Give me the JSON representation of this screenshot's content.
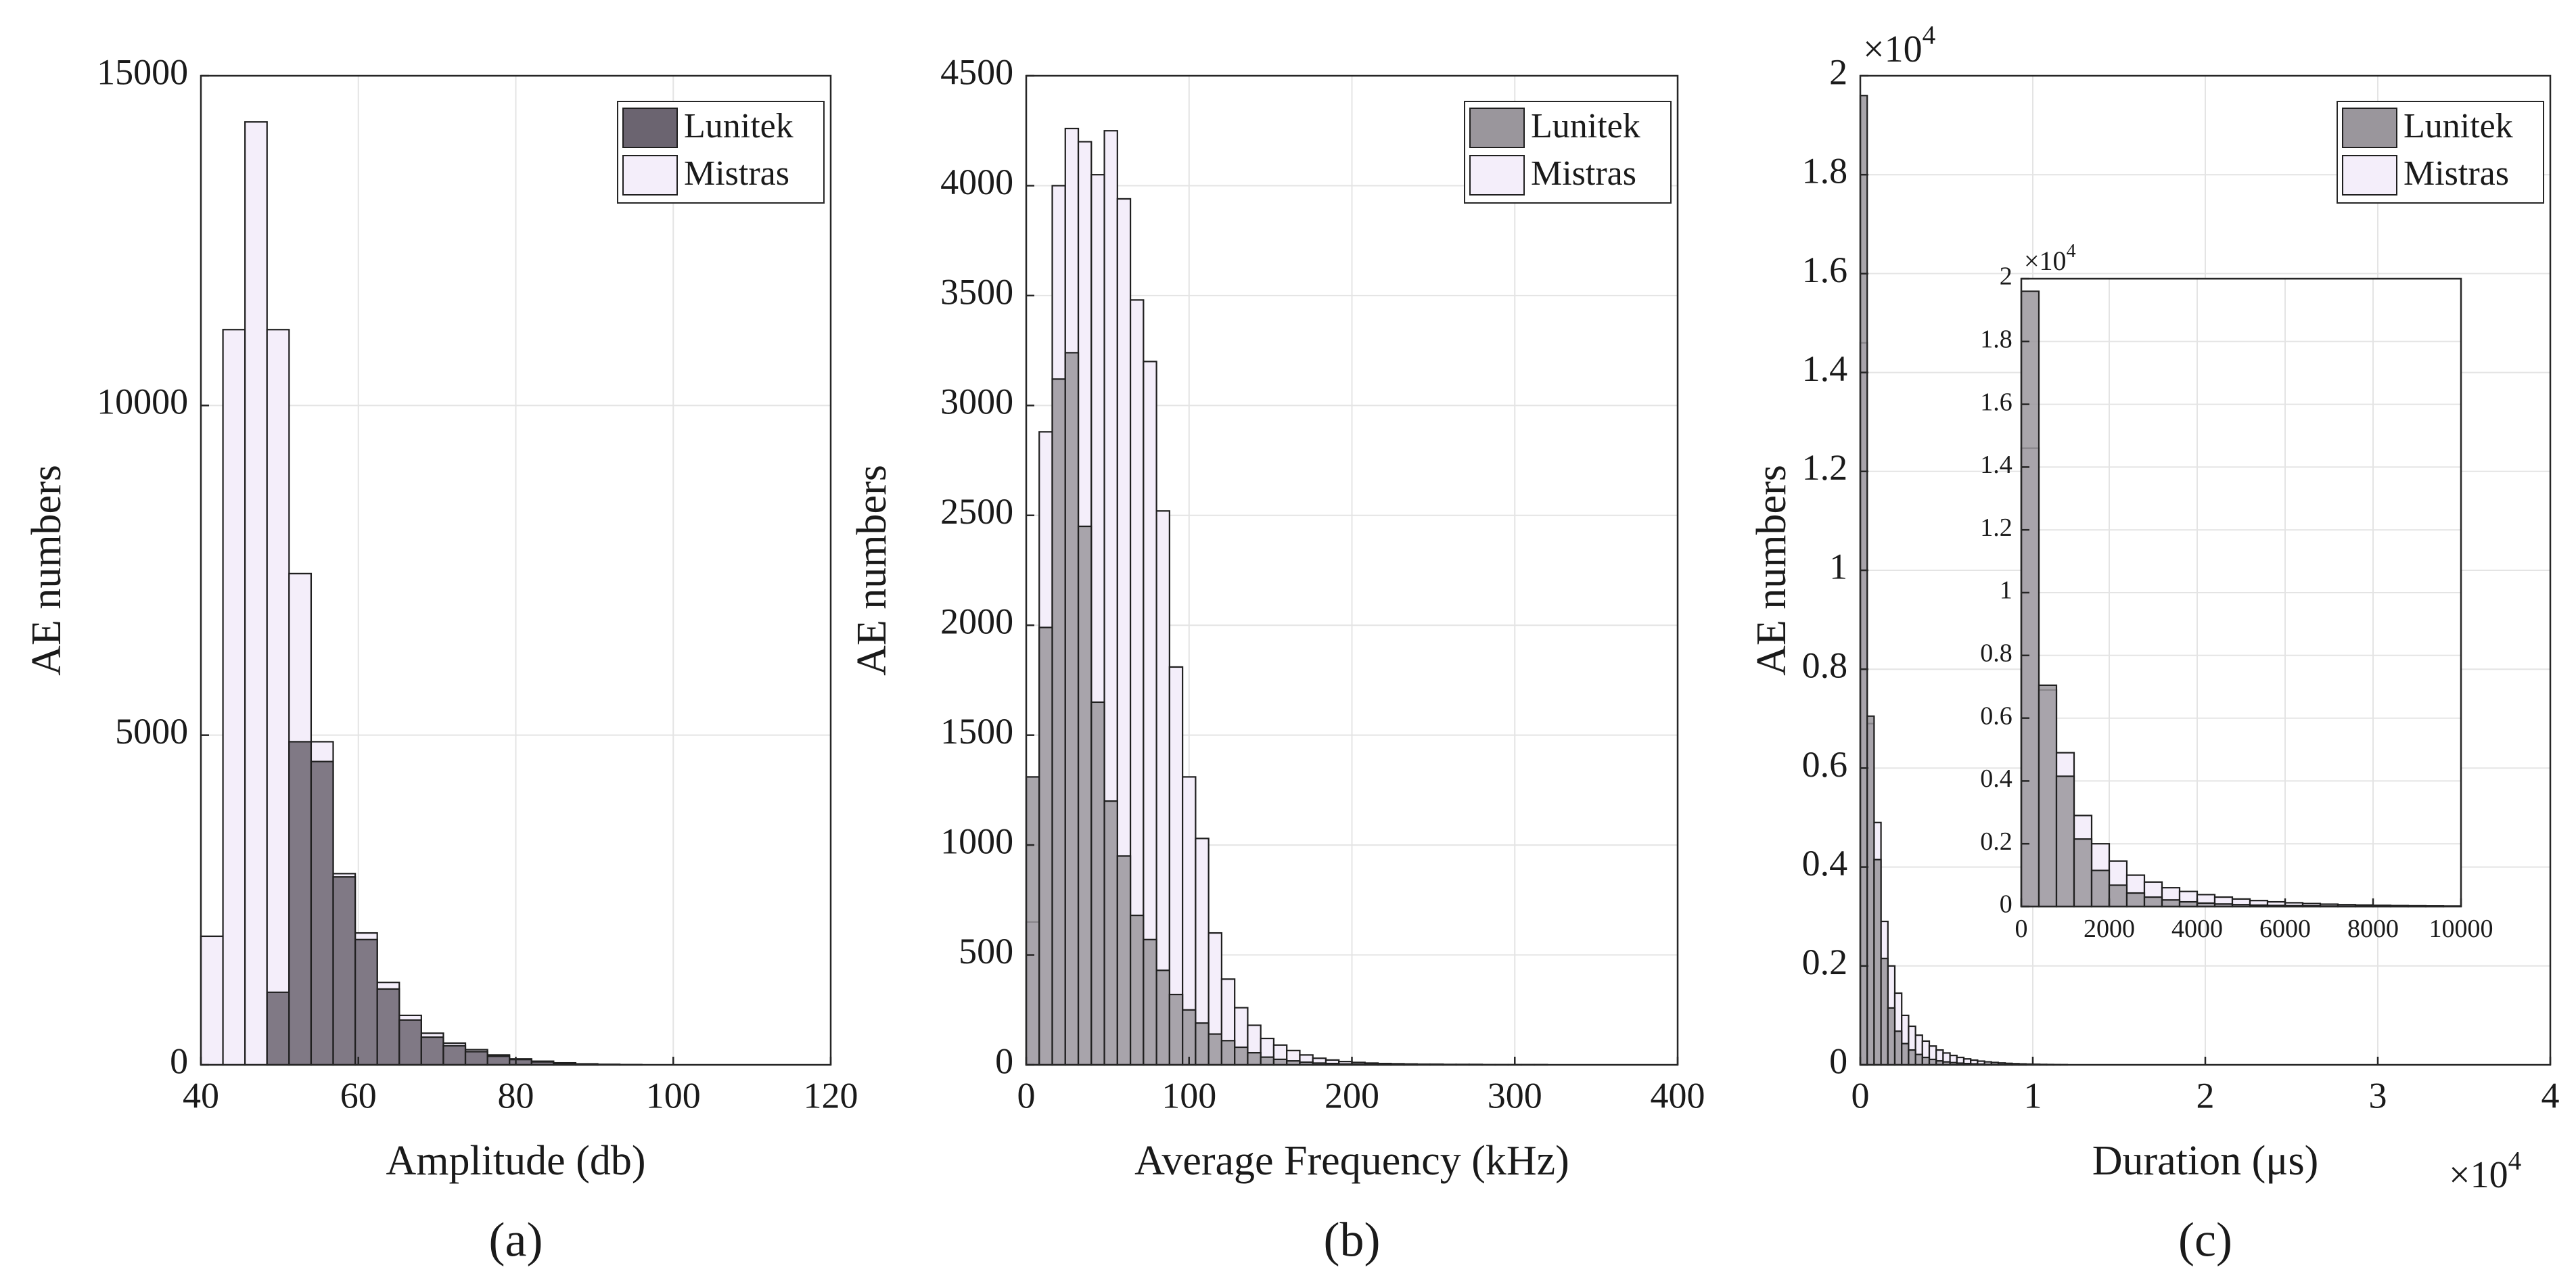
{
  "colors": {
    "lunitek_fill": "#6b6470",
    "lunitek_fill_light": "#9a969c",
    "mistras_fill": "#f4eefa",
    "bar_edge": "#1f1f1f",
    "grid": "#e4e4e4",
    "axis": "#262626"
  },
  "chart_data": [
    {
      "id": "a",
      "type": "bar",
      "panel_label": "(a)",
      "xlabel": "Amplitude (db)",
      "ylabel": "AE numbers",
      "xlim": [
        40,
        120
      ],
      "ylim": [
        0,
        15000
      ],
      "xticks": [
        40,
        60,
        80,
        100,
        120
      ],
      "yticks": [
        0,
        5000,
        10000,
        15000
      ],
      "grid": true,
      "legend": {
        "position": "top-right",
        "entries": [
          "Lunitek",
          "Mistras"
        ]
      },
      "series": [
        {
          "name": "Mistras",
          "bin_edges": [
            40,
            42.8,
            45.6,
            48.4,
            51.2,
            54,
            56.8,
            59.6,
            62.4,
            65.2,
            68,
            70.8,
            73.6,
            76.4,
            79.2,
            82,
            84.8,
            87.6,
            90.4,
            93.2,
            96
          ],
          "values": [
            1950,
            11150,
            14300,
            11150,
            7450,
            4900,
            2900,
            2000,
            1250,
            750,
            480,
            330,
            230,
            150,
            90,
            55,
            30,
            15,
            8,
            4
          ]
        },
        {
          "name": "Lunitek",
          "bin_edges": [
            48.4,
            51.2,
            54,
            56.8,
            59.6,
            62.4,
            65.2,
            68,
            70.8,
            73.6,
            76.4,
            79.2,
            82,
            84.8,
            87.6,
            90.4
          ],
          "values": [
            1100,
            4900,
            4600,
            2850,
            1900,
            1150,
            680,
            420,
            290,
            200,
            130,
            80,
            45,
            22,
            10
          ]
        }
      ]
    },
    {
      "id": "b",
      "type": "bar",
      "panel_label": "(b)",
      "xlabel": "Average Frequency (kHz)",
      "ylabel": "AE numbers",
      "xlim": [
        0,
        400
      ],
      "ylim": [
        0,
        4500
      ],
      "xticks": [
        0,
        100,
        200,
        300,
        400
      ],
      "yticks": [
        0,
        500,
        1000,
        1500,
        2000,
        2500,
        3000,
        3500,
        4000,
        4500
      ],
      "grid": true,
      "legend": {
        "position": "top-right",
        "entries": [
          "Lunitek",
          "Mistras"
        ]
      },
      "series": [
        {
          "name": "Mistras",
          "bin_start": 0,
          "bin_width": 8,
          "values": [
            650,
            2880,
            4000,
            4260,
            4200,
            4050,
            4250,
            3940,
            3480,
            3200,
            2520,
            1810,
            1310,
            1030,
            600,
            390,
            260,
            180,
            120,
            90,
            65,
            45,
            30,
            22,
            15,
            11,
            8,
            6,
            5,
            4,
            3,
            3,
            2,
            2,
            2,
            1,
            1,
            1,
            1,
            1
          ]
        },
        {
          "name": "Lunitek",
          "bin_start": 0,
          "bin_width": 8,
          "values": [
            1310,
            1990,
            3120,
            3240,
            2450,
            1650,
            1200,
            950,
            680,
            570,
            430,
            320,
            250,
            190,
            140,
            110,
            80,
            55,
            35,
            25,
            18,
            12,
            8,
            6,
            4,
            3,
            2,
            2,
            1,
            1
          ]
        }
      ]
    },
    {
      "id": "c",
      "type": "bar",
      "panel_label": "(c)",
      "xlabel": "Duration (μs)",
      "ylabel": "AE numbers",
      "x_multiplier": "×10",
      "x_multiplier_exp": "4",
      "y_multiplier": "×10",
      "y_multiplier_exp": "4",
      "xlim": [
        0,
        40000
      ],
      "ylim": [
        0,
        20000
      ],
      "xticks": [
        0,
        10000,
        20000,
        30000,
        40000
      ],
      "xtick_labels": [
        "0",
        "1",
        "2",
        "3",
        "4"
      ],
      "yticks": [
        0,
        2000,
        4000,
        6000,
        8000,
        10000,
        12000,
        14000,
        16000,
        18000,
        20000
      ],
      "ytick_labels": [
        "0",
        "0.2",
        "0.4",
        "0.6",
        "0.8",
        "1",
        "1.2",
        "1.4",
        "1.6",
        "1.8",
        "2"
      ],
      "grid": true,
      "legend": {
        "position": "top-right",
        "entries": [
          "Lunitek",
          "Mistras"
        ]
      },
      "series": [
        {
          "name": "Mistras",
          "bin_start": 0,
          "bin_width": 400,
          "values": [
            14600,
            6900,
            4900,
            2900,
            2000,
            1450,
            1000,
            780,
            600,
            480,
            380,
            300,
            240,
            190,
            150,
            120,
            95,
            75,
            60,
            48,
            38,
            30,
            24,
            19,
            15,
            12,
            9,
            7,
            5,
            4
          ]
        },
        {
          "name": "Lunitek",
          "bin_start": 0,
          "bin_width": 400,
          "values": [
            19600,
            7050,
            4150,
            2150,
            1150,
            680,
            430,
            300,
            210,
            150,
            110,
            80,
            60,
            45,
            34,
            26,
            20,
            15,
            11,
            8,
            6,
            4,
            3,
            2
          ]
        }
      ],
      "inset": {
        "xlim": [
          0,
          10000
        ],
        "ylim": [
          0,
          20000
        ],
        "xticks": [
          0,
          2000,
          4000,
          6000,
          8000,
          10000
        ],
        "xtick_labels": [
          "0",
          "2000",
          "4000",
          "6000",
          "8000",
          "10000"
        ],
        "yticks": [
          0,
          2000,
          4000,
          6000,
          8000,
          10000,
          12000,
          14000,
          16000,
          18000,
          20000
        ],
        "ytick_labels": [
          "0",
          "0.2",
          "0.4",
          "0.6",
          "0.8",
          "1",
          "1.2",
          "1.4",
          "1.6",
          "1.8",
          "2"
        ],
        "y_multiplier": "×10",
        "y_multiplier_exp": "4"
      }
    }
  ]
}
